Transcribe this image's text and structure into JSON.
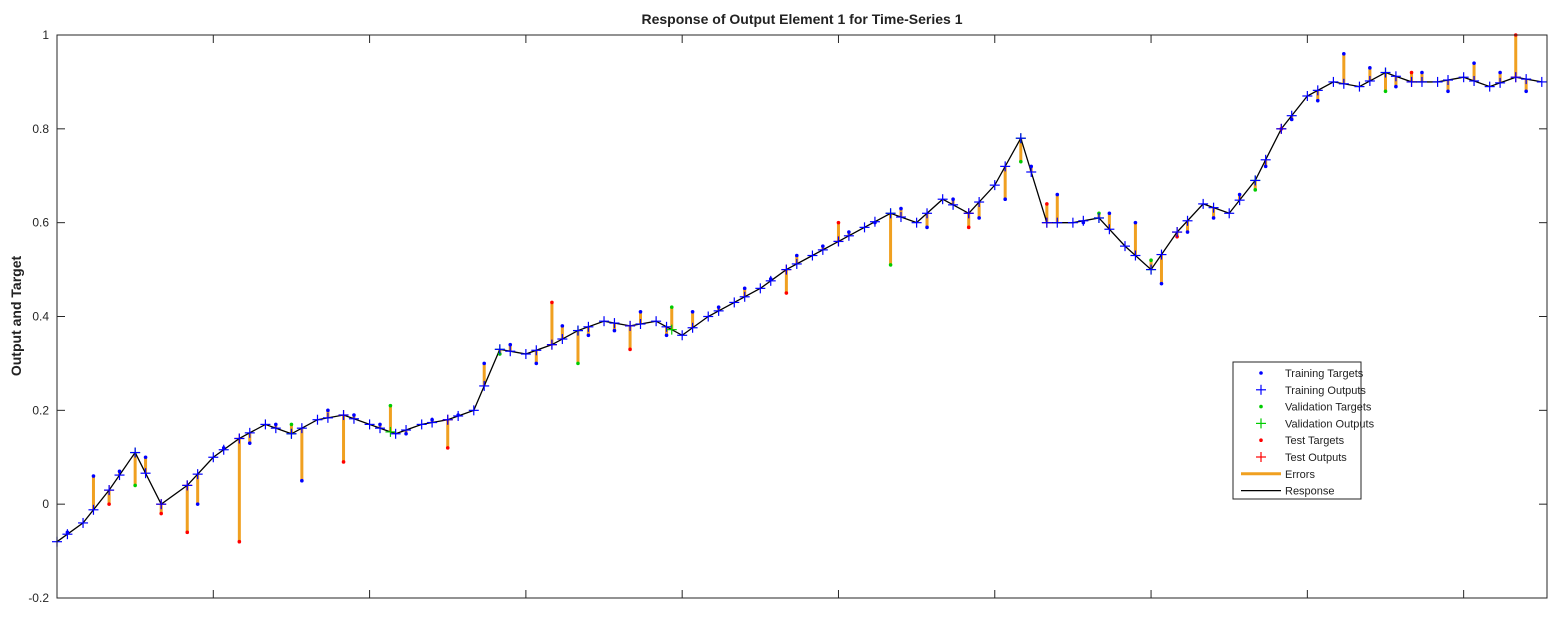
{
  "chart_data": {
    "type": "line",
    "title": "Response of Output Element 1 for Time-Series 1",
    "xlabel": "",
    "ylabel": "Output and Target",
    "ylim": [
      -0.2,
      1.0
    ],
    "xlim": [
      0,
      286
    ],
    "y_ticks": [
      "-0.2",
      "0",
      "0.2",
      "0.4",
      "0.6",
      "0.8",
      "1"
    ],
    "x_tick_positions": [
      30,
      60,
      90,
      120,
      150,
      180,
      210,
      240,
      270
    ],
    "grid": false,
    "legend_position": "lower-right",
    "legend": [
      "Training Targets",
      "Training Outputs",
      "Validation Targets",
      "Validation Outputs",
      "Test Targets",
      "Test Outputs",
      "Errors",
      "Response"
    ],
    "colors": {
      "training": "#0000ff",
      "validation": "#00cc00",
      "test": "#ff0000",
      "errors": "#f0a020",
      "response": "#000000"
    },
    "series": [
      {
        "name": "Response",
        "x": [
          0,
          5,
          10,
          15,
          20,
          25,
          30,
          35,
          40,
          45,
          50,
          55,
          60,
          65,
          70,
          75,
          80,
          85,
          90,
          95,
          100,
          105,
          110,
          115,
          120,
          125,
          130,
          135,
          140,
          145,
          150,
          155,
          160,
          165,
          170,
          175,
          180,
          185,
          190,
          195,
          200,
          205,
          210,
          215,
          220,
          225,
          230,
          235,
          240,
          245,
          250,
          255,
          260,
          265,
          270,
          275,
          280,
          285
        ],
        "values": [
          -0.08,
          -0.04,
          0.03,
          0.11,
          0.0,
          0.04,
          0.1,
          0.14,
          0.17,
          0.15,
          0.18,
          0.19,
          0.17,
          0.15,
          0.17,
          0.18,
          0.2,
          0.33,
          0.32,
          0.34,
          0.37,
          0.39,
          0.38,
          0.39,
          0.36,
          0.4,
          0.43,
          0.46,
          0.5,
          0.53,
          0.56,
          0.59,
          0.62,
          0.6,
          0.65,
          0.62,
          0.68,
          0.78,
          0.6,
          0.6,
          0.61,
          0.55,
          0.5,
          0.58,
          0.64,
          0.62,
          0.69,
          0.8,
          0.87,
          0.9,
          0.89,
          0.92,
          0.9,
          0.9,
          0.91,
          0.89,
          0.91,
          0.9
        ]
      },
      {
        "name": "Training Targets",
        "x": [
          2,
          7,
          12,
          17,
          27,
          32,
          37,
          42,
          47,
          52,
          57,
          62,
          67,
          72,
          77,
          82,
          87,
          92,
          97,
          102,
          107,
          112,
          117,
          122,
          127,
          132,
          137,
          142,
          147,
          152,
          157,
          162,
          167,
          172,
          177,
          182,
          187,
          192,
          197,
          202,
          207,
          212,
          217,
          222,
          227,
          232,
          237,
          242,
          247,
          252,
          257,
          262,
          267,
          272,
          277,
          282
        ],
        "values": [
          -0.06,
          0.06,
          0.07,
          0.1,
          0.0,
          0.12,
          0.13,
          0.17,
          0.05,
          0.2,
          0.19,
          0.17,
          0.15,
          0.18,
          0.19,
          0.3,
          0.34,
          0.3,
          0.38,
          0.36,
          0.37,
          0.41,
          0.36,
          0.41,
          0.42,
          0.46,
          0.48,
          0.53,
          0.55,
          0.58,
          0.6,
          0.63,
          0.59,
          0.65,
          0.61,
          0.65,
          0.72,
          0.66,
          0.6,
          0.62,
          0.6,
          0.47,
          0.58,
          0.61,
          0.66,
          0.72,
          0.82,
          0.86,
          0.96,
          0.93,
          0.89,
          0.92,
          0.88,
          0.94,
          0.92,
          0.88
        ]
      },
      {
        "name": "Validation Targets",
        "x": [
          15,
          45,
          64,
          85,
          100,
          118,
          160,
          185,
          200,
          210,
          230,
          255
        ],
        "values": [
          0.04,
          0.17,
          0.21,
          0.32,
          0.3,
          0.42,
          0.51,
          0.73,
          0.62,
          0.52,
          0.67,
          0.88
        ]
      },
      {
        "name": "Test Targets",
        "x": [
          10,
          20,
          25,
          35,
          55,
          75,
          95,
          110,
          140,
          150,
          175,
          190,
          215,
          235,
          260,
          280
        ],
        "values": [
          0.0,
          -0.02,
          -0.06,
          -0.08,
          0.09,
          0.12,
          0.43,
          0.33,
          0.45,
          0.6,
          0.59,
          0.64,
          0.57,
          0.8,
          0.92,
          1.0
        ]
      }
    ]
  }
}
